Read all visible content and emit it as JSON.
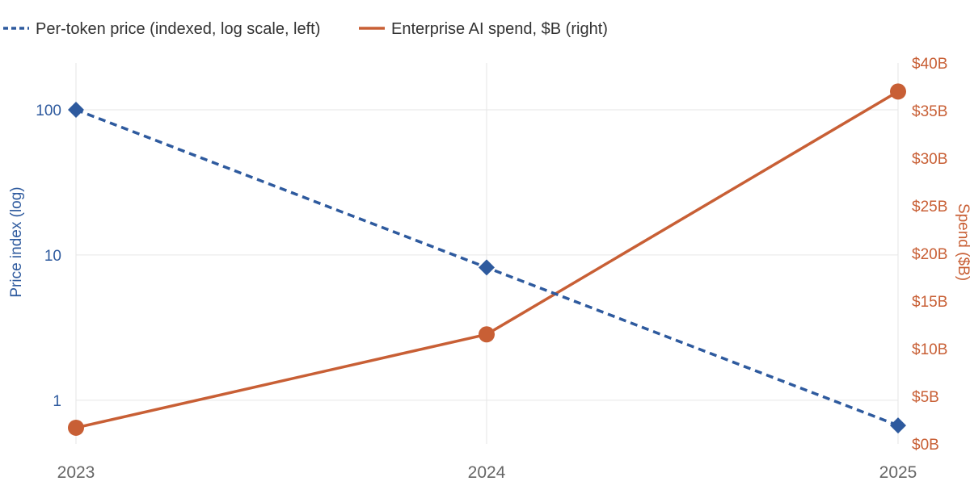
{
  "chart_data": {
    "type": "line",
    "x": [
      "2023",
      "2024",
      "2025"
    ],
    "series": [
      {
        "name": "Per-token price (indexed, log scale, left)",
        "axis": "left",
        "scale": "log",
        "style": "dashed",
        "marker": "diamond",
        "color": "#2E5A9E",
        "values": [
          100,
          8.2,
          0.67
        ]
      },
      {
        "name": "Enterprise AI spend, $B (right)",
        "axis": "right",
        "scale": "linear",
        "style": "solid",
        "marker": "circle",
        "color": "#C85F35",
        "values": [
          1.7,
          11.5,
          37
        ]
      }
    ],
    "y_left": {
      "label": "Price index (log)",
      "scale": "log",
      "range": [
        0.5,
        210
      ],
      "ticks": [
        1,
        10,
        100
      ],
      "tick_labels": [
        "1",
        "10",
        "100"
      ]
    },
    "y_right": {
      "label": "Spend ($B)",
      "range": [
        0,
        40
      ],
      "ticks": [
        0,
        5,
        10,
        15,
        20,
        25,
        30,
        35,
        40
      ],
      "tick_labels": [
        "$0B",
        "$5B",
        "$10B",
        "$15B",
        "$20B",
        "$25B",
        "$30B",
        "$35B",
        "$40B"
      ]
    },
    "grid": true,
    "legend_position": "top-left"
  }
}
